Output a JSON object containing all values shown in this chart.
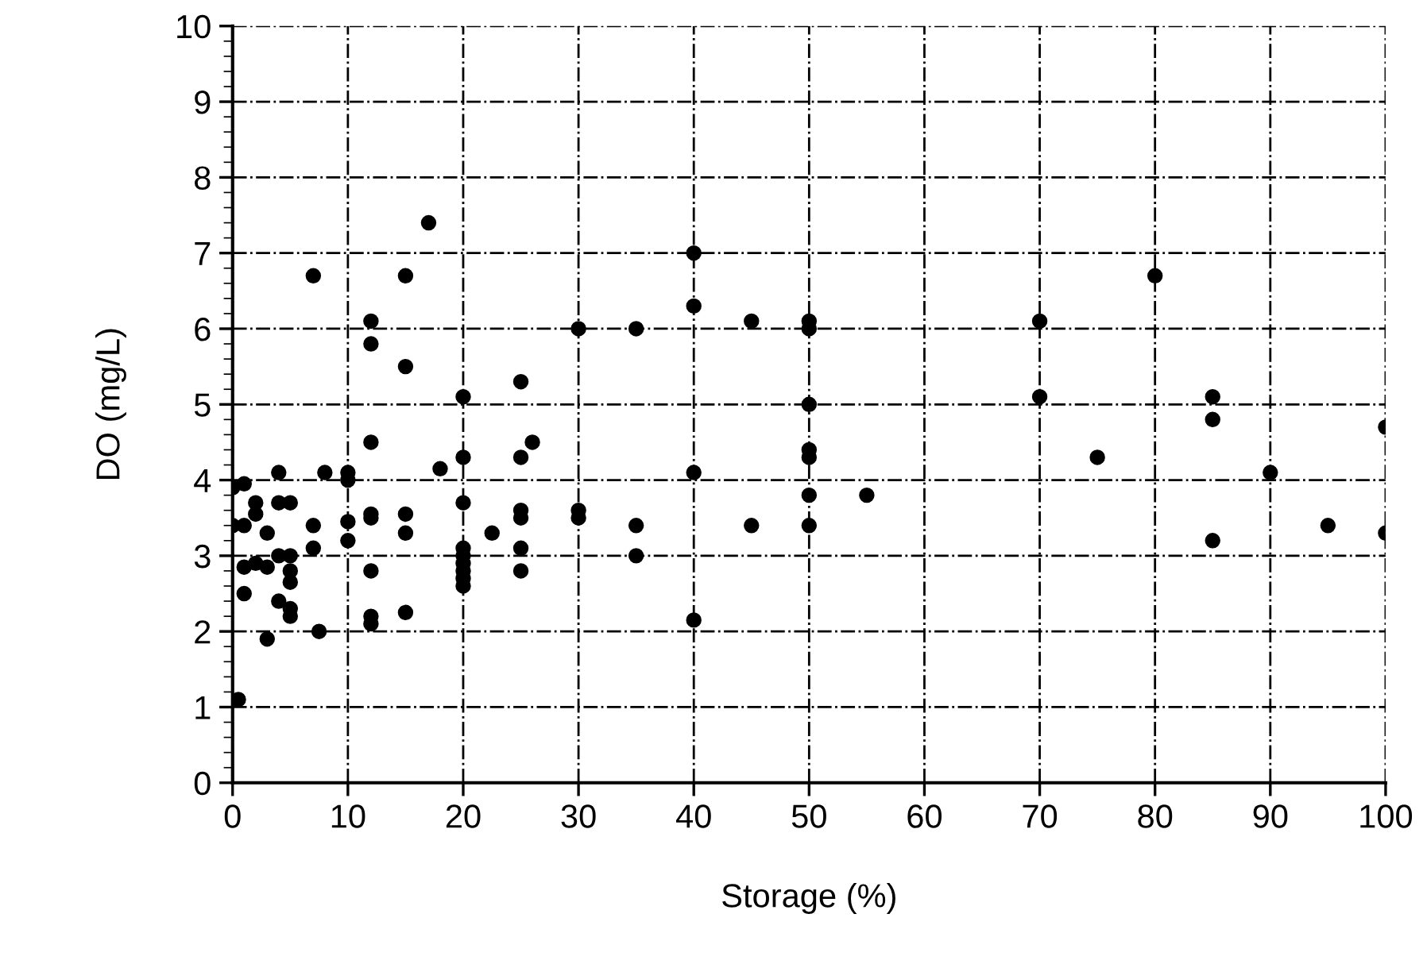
{
  "chart_data": {
    "type": "scatter",
    "xlabel": "Storage (%)",
    "ylabel": "DO (mg/L)",
    "x": [
      0,
      0,
      0.5,
      1,
      1,
      1,
      1,
      2,
      2,
      2,
      3,
      3,
      3,
      4,
      4,
      4,
      4,
      5,
      5,
      5,
      5,
      5,
      5,
      7,
      7,
      7,
      7.5,
      8,
      10,
      10,
      10,
      10,
      12,
      12,
      12,
      12,
      12,
      12,
      12,
      12,
      15,
      15,
      15,
      15,
      15,
      17,
      18,
      20,
      20,
      20,
      20,
      20,
      20,
      20,
      20,
      20,
      22.5,
      25,
      25,
      25,
      25,
      25,
      25,
      26,
      30,
      30,
      30,
      35,
      35,
      35,
      40,
      40,
      40,
      40,
      45,
      45,
      50,
      50,
      50,
      50,
      50,
      50,
      50,
      55,
      70,
      70,
      75,
      80,
      85,
      85,
      85,
      90,
      95,
      100,
      100
    ],
    "series": [
      {
        "color": "#000000",
        "values": [
          3.9,
          3.4,
          1.1,
          3.95,
          3.4,
          2.85,
          2.5,
          3.7,
          3.55,
          2.9,
          3.3,
          2.85,
          1.9,
          4.1,
          3.7,
          3.0,
          2.4,
          3.7,
          3.0,
          2.8,
          2.65,
          2.3,
          2.2,
          3.4,
          6.7,
          3.1,
          2.0,
          4.1,
          4.1,
          4.0,
          3.45,
          3.2,
          3.55,
          3.5,
          6.1,
          5.8,
          4.5,
          2.8,
          2.2,
          2.1,
          6.7,
          5.5,
          3.55,
          3.3,
          2.25,
          7.4,
          4.15,
          5.1,
          4.3,
          3.7,
          3.1,
          3.0,
          2.9,
          2.8,
          2.7,
          2.6,
          3.3,
          5.3,
          4.3,
          3.6,
          3.5,
          3.1,
          2.8,
          4.5,
          6.0,
          3.6,
          3.5,
          6.0,
          3.4,
          3.0,
          7.0,
          6.3,
          4.1,
          2.15,
          6.1,
          3.4,
          6.1,
          6.0,
          5.0,
          4.4,
          4.3,
          3.8,
          3.4,
          3.8,
          6.1,
          5.1,
          4.3,
          6.7,
          5.1,
          4.8,
          3.2,
          4.1,
          3.4,
          4.7,
          3.3
        ]
      }
    ],
    "xlim": [
      0,
      100
    ],
    "xticks": [
      0,
      10,
      20,
      30,
      40,
      50,
      60,
      70,
      80,
      90,
      100
    ],
    "ylim": [
      0,
      10
    ],
    "yticks": [
      0,
      1,
      2,
      3,
      4,
      5,
      6,
      7,
      8,
      9,
      10
    ],
    "grid": true,
    "marker": "circle"
  }
}
